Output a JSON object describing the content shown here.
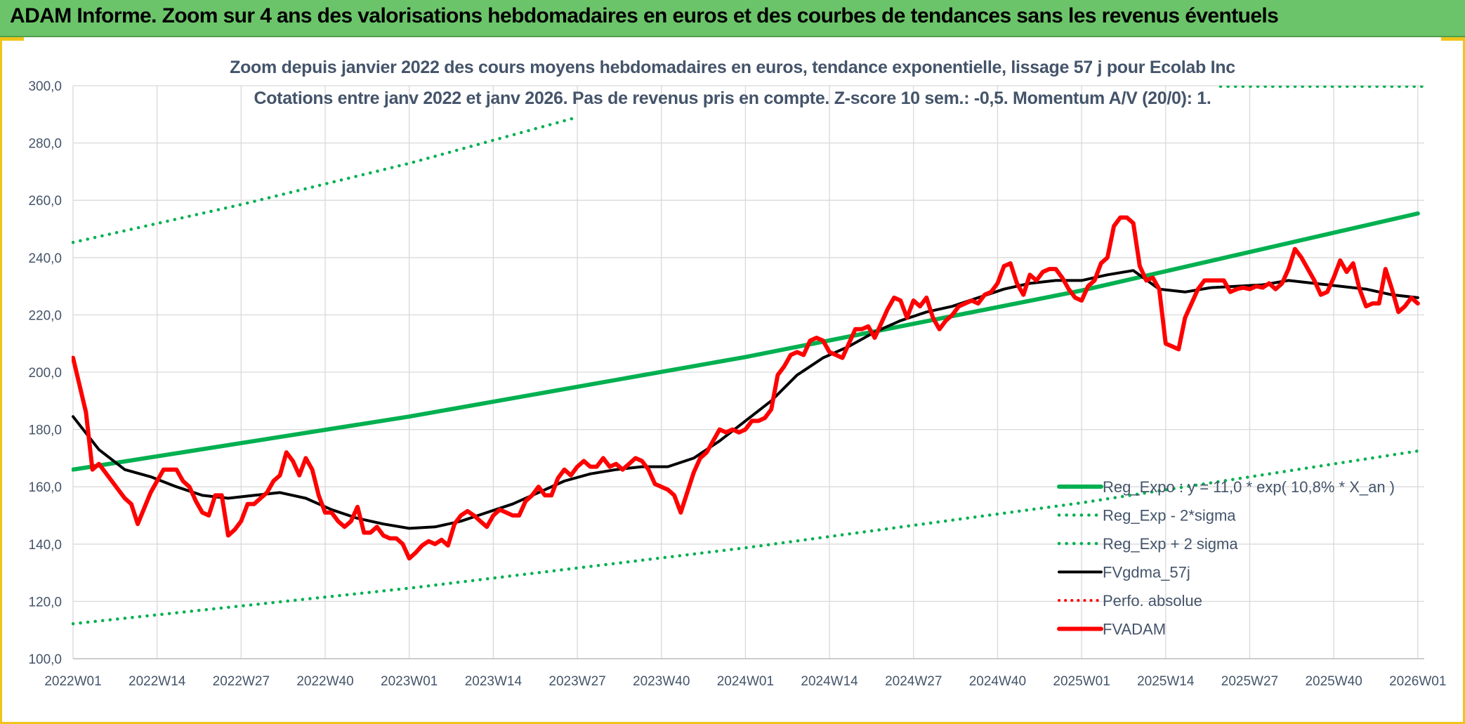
{
  "banner_title": "ADAM Informe. Zoom sur 4 ans des valorisations hebdomadaires en euros et des courbes de tendances sans les revenus éventuels",
  "chart_data": {
    "type": "line",
    "title_line1": "Zoom depuis janvier 2022 des cours moyens hebdomadaires en euros, tendance exponentielle, lissage 57 j pour Ecolab Inc",
    "title_line2": "Cotations entre janv 2022 et janv 2026. Pas de revenus pris en compte. Z-score 10 sem.: -0,5. Momentum A/V (20/0): 1.",
    "xlabel": "",
    "ylabel": "",
    "ylim": [
      100,
      300
    ],
    "yticks": [
      "300,0",
      "280,0",
      "260,0",
      "240,0",
      "220,0",
      "200,0",
      "180,0",
      "160,0",
      "140,0",
      "120,0",
      "100,0"
    ],
    "ytick_values": [
      300,
      280,
      260,
      240,
      220,
      200,
      180,
      160,
      140,
      120,
      100
    ],
    "xlim": [
      0,
      209
    ],
    "xticks": [
      "2022W01",
      "2022W14",
      "2022W27",
      "2022W40",
      "2023W01",
      "2023W14",
      "2023W27",
      "2023W40",
      "2024W01",
      "2024W14",
      "2024W27",
      "2024W40",
      "2025W01",
      "2025W14",
      "2025W27",
      "2025W40",
      "2026W01"
    ],
    "xtick_weeks": [
      0,
      13,
      26,
      39,
      52,
      65,
      78,
      91,
      104,
      117,
      130,
      143,
      156,
      169,
      182,
      195,
      208
    ],
    "grid": true,
    "legend_position": "bottom-right",
    "colors": {
      "reg": "#00b050",
      "band": "#00b050",
      "smooth": "#000000",
      "perfo": "#ff0000",
      "price": "#ff0000",
      "grid": "#d9d9d9"
    },
    "series": [
      {
        "name": "Reg_Expo : y = 11,0 * exp( 10,8% *  X_an )",
        "style": "solid-thick",
        "x": [
          0,
          52,
          104,
          156,
          208
        ],
        "values": [
          166.0,
          184.5,
          205.3,
          228.5,
          255.4
        ]
      },
      {
        "name": "Reg_Exp - 2*sigma",
        "style": "dotted",
        "x": [
          0,
          52,
          104,
          156,
          208
        ],
        "values": [
          112.2,
          124.6,
          138.7,
          154.4,
          172.5
        ]
      },
      {
        "name": "Reg_Exp + 2 sigma",
        "style": "dotted",
        "x": [
          0,
          26,
          52,
          78
        ],
        "values": [
          245.3,
          258.5,
          272.9,
          289.0
        ]
      },
      {
        "name": "FVgdma_57j",
        "style": "solid",
        "x": [
          0,
          4,
          8,
          12,
          16,
          20,
          24,
          28,
          32,
          36,
          40,
          44,
          48,
          52,
          56,
          60,
          64,
          68,
          72,
          76,
          80,
          84,
          88,
          92,
          96,
          100,
          104,
          108,
          112,
          116,
          120,
          124,
          128,
          132,
          136,
          140,
          144,
          148,
          152,
          156,
          160,
          164,
          168,
          172,
          176,
          180,
          184,
          188,
          192,
          196,
          200,
          204,
          208
        ],
        "values": [
          184.5,
          173.0,
          166.0,
          163.5,
          160.0,
          157.0,
          156.0,
          157.0,
          158.0,
          156.0,
          152.0,
          149.0,
          147.0,
          145.5,
          146.0,
          148.0,
          151.0,
          154.0,
          158.0,
          162.0,
          164.5,
          166.0,
          167.0,
          167.0,
          170.0,
          176.0,
          183.0,
          190.0,
          199.0,
          205.0,
          209.0,
          214.0,
          218.0,
          221.0,
          223.0,
          226.0,
          229.0,
          231.0,
          232.0,
          232.0,
          234.0,
          235.5,
          229.0,
          228.0,
          229.5,
          230.0,
          230.5,
          232.0,
          231.0,
          230.0,
          229.0,
          227.0,
          226.0
        ]
      },
      {
        "name": "Perfo. absolue",
        "style": "dotted-red",
        "x": [],
        "values": []
      },
      {
        "name": "FVADAM",
        "style": "solid-thick-red",
        "x": [
          0,
          2,
          3,
          4,
          6,
          8,
          9,
          10,
          12,
          13,
          14,
          16,
          17,
          18,
          19,
          20,
          21,
          22,
          23,
          24,
          25,
          26,
          27,
          28,
          29,
          30,
          31,
          32,
          33,
          34,
          35,
          36,
          37,
          38,
          39,
          40,
          41,
          42,
          43,
          44,
          45,
          46,
          47,
          48,
          49,
          50,
          51,
          52,
          53,
          54,
          55,
          56,
          57,
          58,
          59,
          60,
          61,
          62,
          63,
          64,
          65,
          66,
          67,
          68,
          69,
          70,
          71,
          72,
          73,
          74,
          75,
          76,
          77,
          78,
          79,
          80,
          81,
          82,
          83,
          84,
          85,
          86,
          87,
          88,
          89,
          90,
          91,
          92,
          93,
          94,
          95,
          96,
          97,
          98,
          99,
          100,
          101,
          102,
          103,
          104,
          105,
          106,
          107,
          108,
          109,
          110,
          111,
          112,
          113,
          114,
          115,
          116,
          117,
          118,
          119,
          120,
          121,
          122,
          123,
          124,
          125,
          126,
          127,
          128,
          129,
          130,
          131,
          132,
          133,
          134,
          135,
          136,
          137,
          138,
          139,
          140,
          141,
          142,
          143,
          144,
          145,
          146,
          147,
          148,
          149,
          150,
          151,
          152,
          153,
          154,
          155,
          156,
          157,
          158,
          159,
          160,
          161,
          162,
          163,
          164,
          165,
          166,
          167,
          168,
          169,
          170,
          171,
          172,
          173,
          174,
          175,
          176,
          177,
          178,
          179,
          180,
          181,
          182,
          183,
          184,
          185,
          186,
          187,
          188,
          189,
          190,
          191,
          192,
          193,
          194,
          195,
          196,
          197,
          198,
          199,
          200,
          201,
          202,
          203,
          204,
          205,
          206,
          207,
          208
        ],
        "values": [
          205.0,
          186.0,
          166.0,
          168.0,
          162.0,
          156.0,
          154.0,
          147.0,
          158.0,
          162.0,
          166.0,
          166.0,
          162.0,
          160.0,
          155.0,
          151.0,
          150.0,
          157.0,
          157.0,
          143.0,
          145.0,
          148.0,
          154.0,
          154.0,
          156.0,
          158.0,
          162.0,
          164.0,
          172.0,
          169.0,
          164.0,
          170.0,
          166.0,
          157.0,
          151.0,
          151.0,
          148.0,
          146.0,
          148.0,
          153.0,
          144.0,
          144.0,
          146.0,
          143.0,
          142.0,
          142.0,
          140.0,
          135.0,
          137.0,
          139.5,
          141.0,
          140.0,
          141.5,
          139.5,
          147.0,
          150.0,
          151.5,
          150.0,
          148.0,
          146.0,
          150.0,
          152.0,
          151.0,
          150.0,
          150.0,
          155.0,
          157.0,
          160.0,
          157.0,
          157.0,
          163.0,
          166.0,
          164.0,
          167.0,
          169.0,
          167.0,
          167.0,
          170.0,
          167.0,
          168.0,
          166.0,
          168.0,
          170.0,
          169.0,
          166.0,
          161.0,
          160.0,
          159.0,
          157.0,
          151.0,
          158.0,
          165.0,
          170.0,
          172.0,
          176.0,
          180.0,
          179.0,
          180.0,
          179.0,
          180.0,
          183.0,
          183.0,
          184.0,
          187.0,
          199.0,
          202.0,
          206.0,
          207.0,
          206.0,
          211.0,
          212.0,
          211.0,
          207.0,
          206.0,
          205.0,
          210.0,
          215.0,
          215.0,
          216.0,
          212.0,
          217.0,
          222.0,
          226.0,
          225.0,
          219.0,
          225.0,
          223.0,
          226.0,
          219.0,
          215.0,
          218.0,
          220.0,
          223.0,
          224.0,
          225.0,
          224.0,
          227.0,
          228.0,
          231.0,
          237.0,
          238.0,
          231.0,
          227.0,
          234.0,
          232.0,
          235.0,
          236.0,
          236.0,
          233.0,
          229.0,
          226.0,
          225.0,
          230.0,
          232.0,
          238.0,
          240.0,
          251.0,
          254.0,
          254.0,
          252.0,
          237.0,
          232.0,
          233.0,
          229.0,
          210.0,
          209.0,
          208.0,
          219.0,
          224.0,
          229.0,
          232.0,
          232.0,
          232.0,
          232.0,
          228.0,
          229.0,
          229.5,
          229.0,
          230.0,
          229.5,
          231.0,
          229.0,
          231.0,
          236.0,
          243.0,
          240.0,
          236.0,
          232.0,
          227.0,
          228.0,
          233.0,
          239.0,
          235.0,
          238.0,
          229.0,
          223.0,
          224.0,
          224.0,
          236.0,
          229.0,
          221.0,
          223.0,
          226.0,
          224.0
        ]
      }
    ]
  }
}
